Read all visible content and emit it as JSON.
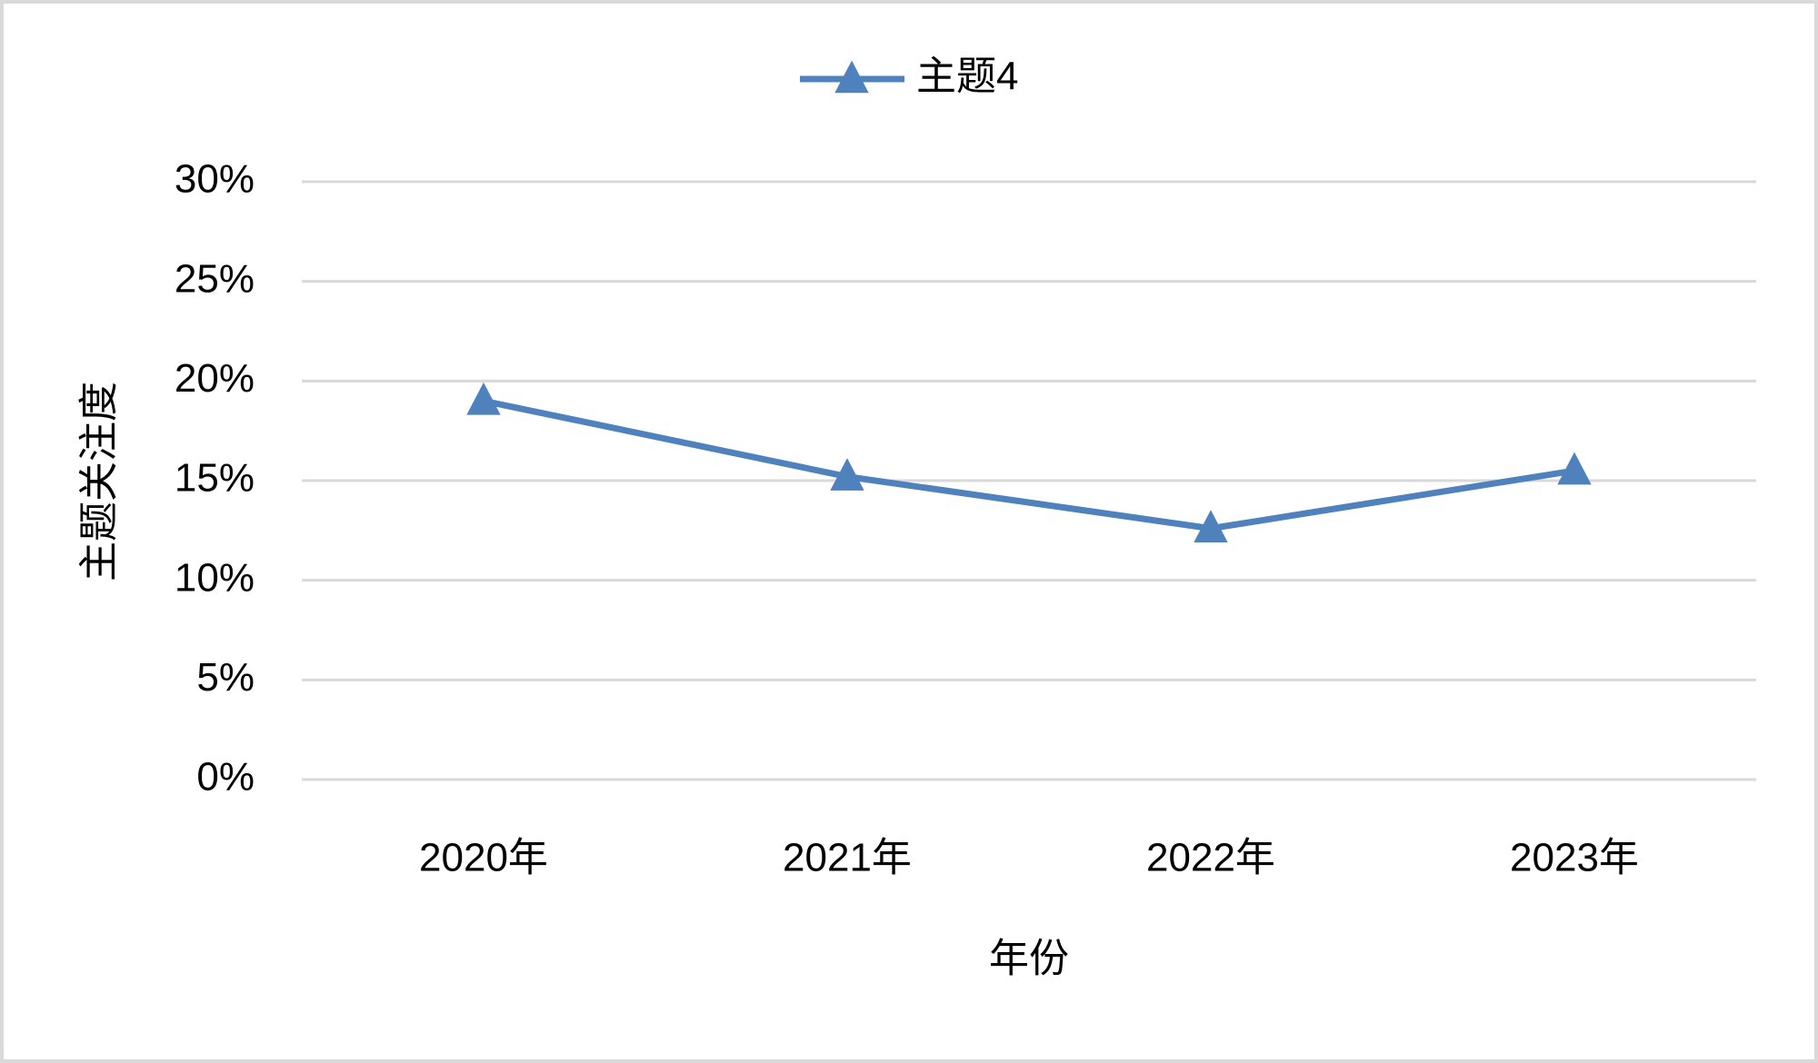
{
  "chart_data": {
    "type": "line",
    "x_label": "年份",
    "y_label": "主题关注度",
    "categories": [
      "2020年",
      "2021年",
      "2022年",
      "2023年"
    ],
    "series": [
      {
        "name": "主题4",
        "color": "#4f81bd",
        "values": [
          19.0,
          15.2,
          12.6,
          15.5
        ]
      }
    ],
    "ylim": [
      0,
      30
    ],
    "yticks": [
      {
        "value": 0,
        "label": "0%"
      },
      {
        "value": 5,
        "label": "5%"
      },
      {
        "value": 10,
        "label": "10%"
      },
      {
        "value": 15,
        "label": "15%"
      },
      {
        "value": 20,
        "label": "20%"
      },
      {
        "value": 25,
        "label": "25%"
      },
      {
        "value": 30,
        "label": "30%"
      }
    ],
    "grid": true,
    "legend": "top",
    "marker": "triangle"
  }
}
